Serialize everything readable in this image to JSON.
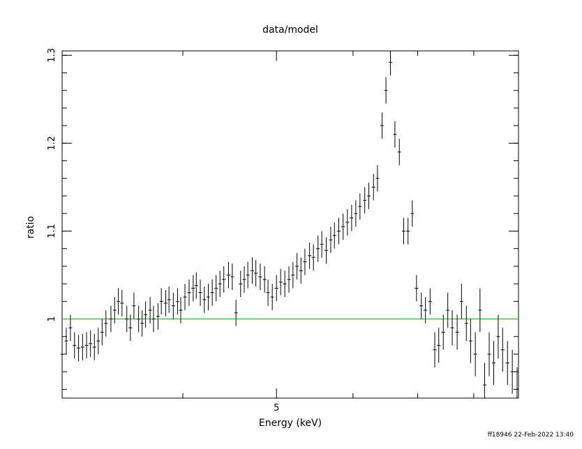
{
  "chart_data": {
    "type": "scatter",
    "title": "data/model",
    "xlabel": "Energy (keV)",
    "ylabel": "ratio",
    "xscale": "log",
    "xlim": [
      3,
      8.9
    ],
    "ylim": [
      0.91,
      1.305
    ],
    "x_ticks": [
      {
        "value": 5,
        "label": "5"
      }
    ],
    "y_ticks": [
      {
        "value": 1.0,
        "label": "1"
      },
      {
        "value": 1.1,
        "label": "1.1"
      },
      {
        "value": 1.2,
        "label": "1.2"
      },
      {
        "value": 1.3,
        "label": "1.3"
      }
    ],
    "reference_line": {
      "y": 1.0,
      "color": "#00cc00"
    },
    "marker_color": "#000000",
    "grid": false,
    "series": [
      {
        "x": [
          3.0,
          3.03,
          3.06,
          3.09,
          3.12,
          3.15,
          3.18,
          3.21,
          3.24,
          3.27,
          3.3,
          3.33,
          3.37,
          3.4,
          3.43,
          3.46,
          3.5,
          3.53,
          3.56,
          3.6,
          3.63,
          3.66,
          3.7,
          3.73,
          3.77,
          3.8,
          3.84,
          3.87,
          3.91,
          3.95,
          3.98,
          4.02,
          4.06,
          4.1,
          4.13,
          4.17,
          4.21,
          4.25,
          4.29,
          4.33,
          4.37,
          4.41,
          4.46,
          4.5,
          4.54,
          4.59,
          4.63,
          4.67,
          4.72,
          4.76,
          4.81,
          4.86,
          4.9,
          4.95,
          5.0,
          5.05,
          5.1,
          5.15,
          5.2,
          5.25,
          5.3,
          5.35,
          5.41,
          5.46,
          5.52,
          5.57,
          5.63,
          5.69,
          5.74,
          5.8,
          5.86,
          5.92,
          5.98,
          6.04,
          6.1,
          6.17,
          6.23,
          6.3,
          6.36,
          6.43,
          6.49,
          6.56,
          6.63,
          6.7,
          6.77,
          6.84,
          6.91,
          6.98,
          7.06,
          7.13,
          7.21,
          7.29,
          7.36,
          7.44,
          7.52,
          7.6,
          7.69,
          7.77,
          7.86,
          7.94,
          8.03,
          8.12,
          8.21,
          8.3,
          8.39,
          8.48,
          8.57,
          8.67,
          8.77,
          8.87
        ],
        "y": [
          0.96,
          0.975,
          0.99,
          0.97,
          0.967,
          0.968,
          0.97,
          0.972,
          0.968,
          0.975,
          0.985,
          0.995,
          1.0,
          1.01,
          1.02,
          1.018,
          1.0,
          0.99,
          1.015,
          1.0,
          0.995,
          1.005,
          1.01,
          1.0,
          1.003,
          1.02,
          1.018,
          1.022,
          1.015,
          1.02,
          1.01,
          1.025,
          1.03,
          1.035,
          1.038,
          1.03,
          1.022,
          1.025,
          1.03,
          1.035,
          1.04,
          1.045,
          1.05,
          1.048,
          1.007,
          1.04,
          1.045,
          1.05,
          1.055,
          1.052,
          1.048,
          1.045,
          1.03,
          1.025,
          1.035,
          1.042,
          1.04,
          1.045,
          1.05,
          1.06,
          1.055,
          1.065,
          1.072,
          1.07,
          1.08,
          1.085,
          1.078,
          1.09,
          1.095,
          1.1,
          1.105,
          1.11,
          1.115,
          1.12,
          1.128,
          1.135,
          1.14,
          1.15,
          1.16,
          1.22,
          1.26,
          1.292,
          1.21,
          1.19,
          1.1,
          1.1,
          1.12,
          1.035,
          1.015,
          1.01,
          1.02,
          0.965,
          0.97,
          0.985,
          1.01,
          0.99,
          0.985,
          1.02,
          0.995,
          0.975,
          0.96,
          1.01,
          0.925,
          0.96,
          0.95,
          0.98,
          0.965,
          0.95,
          0.94,
          0.92
        ],
        "yerr": [
          0.015,
          0.015,
          0.015,
          0.015,
          0.015,
          0.015,
          0.015,
          0.015,
          0.015,
          0.015,
          0.015,
          0.015,
          0.015,
          0.015,
          0.015,
          0.015,
          0.015,
          0.015,
          0.015,
          0.015,
          0.015,
          0.015,
          0.015,
          0.015,
          0.015,
          0.015,
          0.015,
          0.015,
          0.015,
          0.015,
          0.015,
          0.015,
          0.015,
          0.015,
          0.015,
          0.015,
          0.015,
          0.015,
          0.015,
          0.015,
          0.015,
          0.015,
          0.015,
          0.015,
          0.015,
          0.015,
          0.015,
          0.015,
          0.015,
          0.015,
          0.015,
          0.015,
          0.015,
          0.015,
          0.015,
          0.015,
          0.015,
          0.015,
          0.015,
          0.015,
          0.015,
          0.015,
          0.015,
          0.015,
          0.015,
          0.015,
          0.015,
          0.015,
          0.015,
          0.015,
          0.015,
          0.015,
          0.015,
          0.015,
          0.015,
          0.015,
          0.015,
          0.015,
          0.015,
          0.015,
          0.015,
          0.015,
          0.015,
          0.015,
          0.015,
          0.015,
          0.015,
          0.015,
          0.015,
          0.015,
          0.015,
          0.02,
          0.02,
          0.02,
          0.02,
          0.02,
          0.02,
          0.02,
          0.02,
          0.025,
          0.025,
          0.025,
          0.025,
          0.025,
          0.025,
          0.025,
          0.025,
          0.025,
          0.025,
          0.025
        ]
      }
    ]
  },
  "footer": {
    "stamp": "ff18946 22-Feb-2022 13:40"
  }
}
